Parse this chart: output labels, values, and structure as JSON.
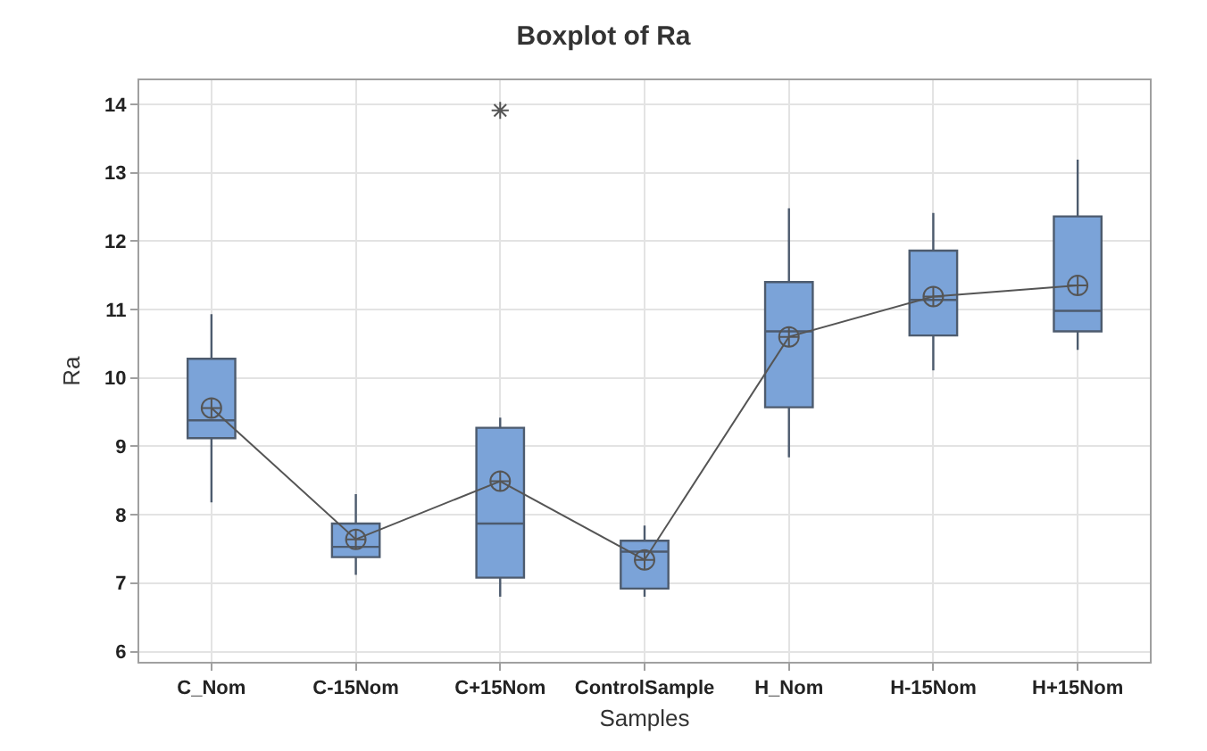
{
  "chart_data": {
    "type": "box",
    "title": "Boxplot of Ra",
    "xlabel": "Samples",
    "ylabel": "Ra",
    "categories": [
      "C_Nom",
      "C-15Nom",
      "C+15Nom",
      "ControlSample",
      "H_Nom",
      "H-15Nom",
      "H+15Nom"
    ],
    "series": [
      {
        "color": "#7ba3d8",
        "boxes": [
          {
            "low": 8.18,
            "q1": 9.12,
            "median": 9.38,
            "q3": 10.28,
            "high": 10.93
          },
          {
            "low": 7.12,
            "q1": 7.38,
            "median": 7.53,
            "q3": 7.87,
            "high": 8.3
          },
          {
            "low": 6.8,
            "q1": 7.08,
            "median": 7.87,
            "q3": 9.27,
            "high": 9.42,
            "outliers": [
              13.91
            ]
          },
          {
            "low": 6.8,
            "q1": 6.92,
            "median": 7.46,
            "q3": 7.62,
            "high": 7.84
          },
          {
            "low": 8.84,
            "q1": 9.57,
            "median": 10.68,
            "q3": 11.4,
            "high": 12.48
          },
          {
            "low": 10.11,
            "q1": 10.62,
            "median": 11.14,
            "q3": 11.86,
            "high": 12.41
          },
          {
            "low": 10.41,
            "q1": 10.68,
            "median": 10.98,
            "q3": 12.36,
            "high": 13.19
          }
        ]
      },
      {
        "type": "line",
        "color": "#555555",
        "marker": "cross",
        "values": [
          9.56,
          7.64,
          8.49,
          7.34,
          10.6,
          11.19,
          11.35
        ]
      }
    ],
    "ylim": [
      5.85,
      14.35
    ],
    "yticks": [
      6,
      7,
      8,
      9,
      10,
      11,
      12,
      13,
      14
    ],
    "grid": true
  }
}
